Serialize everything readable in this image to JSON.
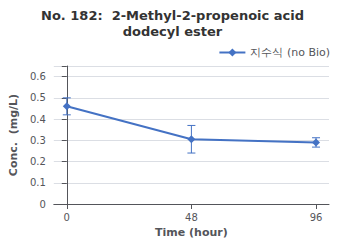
{
  "chart_data": {
    "type": "line",
    "title": "No. 182:  2-Methyl-2-propenoic acid",
    "subtitle": "dodecyl ester",
    "xlabel": "Time (hour)",
    "ylabel": "Conc.  (mg/L)",
    "x": [
      0,
      48,
      96
    ],
    "series": [
      {
        "name": "지수식 (no Bio)",
        "color": "#4472C4",
        "marker": "diamond",
        "values": [
          0.46,
          0.305,
          0.29
        ],
        "y_err": [
          0.04,
          0.065,
          0.022
        ]
      }
    ],
    "xlim": [
      -5,
      101
    ],
    "xticks": [
      0,
      48,
      96
    ],
    "ylim": [
      0,
      0.65
    ],
    "yticks": [
      0,
      0.1,
      0.2,
      0.3,
      0.4,
      0.5,
      0.6
    ],
    "grid": true,
    "legend": "upper right"
  }
}
